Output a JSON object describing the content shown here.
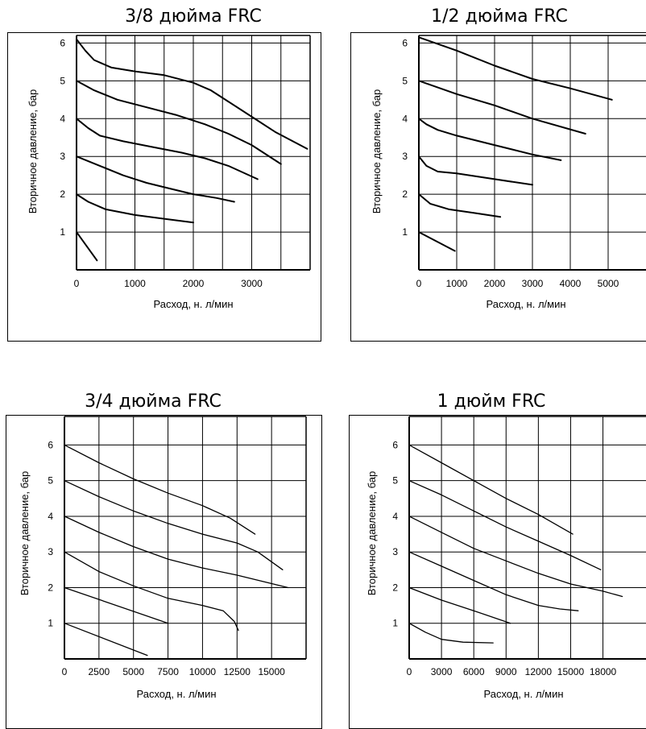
{
  "chart_data": [
    {
      "type": "line",
      "title": "3/8 дюйма FRC",
      "xlabel": "Расход, н. л/мин",
      "ylabel": "Вторичное давление, бар",
      "xlim": [
        0,
        4000
      ],
      "ylim": [
        0,
        6.2
      ],
      "xticks": [
        0,
        1000,
        2000,
        3000
      ],
      "xtick_labels": [
        "0",
        "1000",
        "2000",
        "3000"
      ],
      "yticks": [
        1,
        2,
        3,
        4,
        5,
        6
      ],
      "ytick_labels": [
        "1",
        "2",
        "3",
        "4",
        "5",
        "6"
      ],
      "vgrid": [
        0,
        500,
        1000,
        1500,
        2000,
        2500,
        3000,
        3500
      ],
      "hgrid": [
        1,
        2,
        3,
        4,
        5,
        6
      ],
      "series": [
        {
          "x": [
            0,
            150,
            300,
            600,
            1000,
            1500,
            2000,
            2300,
            2600,
            3000,
            3400,
            3950
          ],
          "y": [
            6.1,
            5.8,
            5.55,
            5.35,
            5.25,
            5.15,
            4.95,
            4.75,
            4.45,
            4.05,
            3.65,
            3.2
          ]
        },
        {
          "x": [
            0,
            300,
            700,
            1200,
            1700,
            2200,
            2600,
            3000,
            3500
          ],
          "y": [
            5.0,
            4.75,
            4.5,
            4.3,
            4.1,
            3.85,
            3.6,
            3.3,
            2.8
          ]
        },
        {
          "x": [
            0,
            200,
            400,
            800,
            1300,
            1800,
            2200,
            2600,
            3100
          ],
          "y": [
            4.0,
            3.75,
            3.55,
            3.4,
            3.25,
            3.1,
            2.95,
            2.75,
            2.4
          ]
        },
        {
          "x": [
            0,
            400,
            800,
            1200,
            1600,
            2000,
            2400,
            2700
          ],
          "y": [
            3.0,
            2.75,
            2.5,
            2.3,
            2.15,
            2.0,
            1.9,
            1.8
          ]
        },
        {
          "x": [
            0,
            200,
            500,
            1000,
            1500,
            2000
          ],
          "y": [
            2.0,
            1.8,
            1.6,
            1.45,
            1.35,
            1.25
          ]
        },
        {
          "x": [
            0,
            350
          ],
          "y": [
            1.0,
            0.25
          ]
        }
      ]
    },
    {
      "type": "line",
      "title": "1/2 дюйма FRC",
      "xlabel": "Расход, н. л/мин",
      "ylabel": "Вторичное давление, бар",
      "xlim": [
        0,
        6000
      ],
      "ylim": [
        0,
        6.2
      ],
      "xticks": [
        0,
        1000,
        2000,
        3000,
        4000,
        5000
      ],
      "xtick_labels": [
        "0",
        "1000",
        "2000",
        "3000",
        "4000",
        "5000"
      ],
      "yticks": [
        1,
        2,
        3,
        4,
        5,
        6
      ],
      "ytick_labels": [
        "1",
        "2",
        "3",
        "4",
        "5",
        "6"
      ],
      "vgrid": [
        1000,
        2000,
        3000,
        4000,
        5000
      ],
      "hgrid": [
        1,
        2,
        3,
        4,
        5,
        6
      ],
      "series": [
        {
          "x": [
            0,
            1000,
            2000,
            3000,
            4000,
            5100
          ],
          "y": [
            6.15,
            5.8,
            5.4,
            5.05,
            4.8,
            4.5
          ]
        },
        {
          "x": [
            0,
            1000,
            2000,
            3000,
            4400
          ],
          "y": [
            5.0,
            4.65,
            4.35,
            4.0,
            3.6
          ]
        },
        {
          "x": [
            0,
            200,
            500,
            1000,
            2000,
            3000,
            3750
          ],
          "y": [
            4.0,
            3.85,
            3.7,
            3.55,
            3.3,
            3.05,
            2.9
          ]
        },
        {
          "x": [
            0,
            200,
            500,
            1000,
            2000,
            3000
          ],
          "y": [
            3.0,
            2.75,
            2.6,
            2.55,
            2.4,
            2.25
          ]
        },
        {
          "x": [
            0,
            300,
            800,
            1500,
            2150
          ],
          "y": [
            2.0,
            1.75,
            1.6,
            1.5,
            1.4
          ]
        },
        {
          "x": [
            0,
            950
          ],
          "y": [
            1.0,
            0.5
          ]
        }
      ]
    },
    {
      "type": "line",
      "title": "3/4 дюйма FRC",
      "xlabel": "Расход, н. л/мин",
      "ylabel": "Вторичное давление, бар",
      "xlim": [
        0,
        17500
      ],
      "ylim": [
        0,
        6.8
      ],
      "xticks": [
        0,
        2500,
        5000,
        7500,
        10000,
        12500,
        15000
      ],
      "xtick_labels": [
        "0",
        "2500",
        "5000",
        "7500",
        "10000",
        "12500",
        "15000"
      ],
      "yticks": [
        1,
        2,
        3,
        4,
        5,
        6
      ],
      "ytick_labels": [
        "1",
        "2",
        "3",
        "4",
        "5",
        "6"
      ],
      "vgrid": [
        2500,
        5000,
        7500,
        10000,
        12500,
        15000
      ],
      "hgrid": [
        1,
        2,
        3,
        4,
        5,
        6
      ],
      "series": [
        {
          "x": [
            0,
            2500,
            5000,
            7500,
            10000,
            12000,
            13800
          ],
          "y": [
            6.0,
            5.5,
            5.05,
            4.65,
            4.3,
            3.95,
            3.5
          ]
        },
        {
          "x": [
            0,
            2500,
            5000,
            7500,
            10000,
            12500,
            14000,
            15800
          ],
          "y": [
            5.0,
            4.55,
            4.15,
            3.8,
            3.5,
            3.25,
            3.0,
            2.5
          ]
        },
        {
          "x": [
            0,
            2500,
            5000,
            7500,
            10000,
            12500,
            16200
          ],
          "y": [
            4.0,
            3.55,
            3.15,
            2.8,
            2.55,
            2.35,
            2.0
          ]
        },
        {
          "x": [
            0,
            2500,
            5000,
            7500,
            10000,
            11500,
            12300,
            12600
          ],
          "y": [
            3.0,
            2.45,
            2.05,
            1.7,
            1.5,
            1.35,
            1.05,
            0.8
          ]
        },
        {
          "x": [
            0,
            7500
          ],
          "y": [
            2.0,
            1.0
          ]
        },
        {
          "x": [
            0,
            6000
          ],
          "y": [
            1.0,
            0.1
          ]
        }
      ]
    },
    {
      "type": "line",
      "title": "1 дюйм FRC",
      "xlabel": "Расход, н. л/мин",
      "ylabel": "Вторичное давление, бар",
      "xlim": [
        0,
        22000
      ],
      "ylim": [
        0,
        6.8
      ],
      "xticks": [
        0,
        3000,
        6000,
        9000,
        12000,
        15000,
        18000
      ],
      "xtick_labels": [
        "0",
        "3000",
        "6000",
        "9000",
        "12000",
        "15000",
        "18000"
      ],
      "yticks": [
        1,
        2,
        3,
        4,
        5,
        6
      ],
      "ytick_labels": [
        "1",
        "2",
        "3",
        "4",
        "5",
        "6"
      ],
      "vgrid": [
        3000,
        6000,
        9000,
        12000,
        15000,
        18000
      ],
      "hgrid": [
        1,
        2,
        3,
        4,
        5,
        6
      ],
      "series": [
        {
          "x": [
            0,
            3000,
            6000,
            9000,
            12000,
            15200
          ],
          "y": [
            6.0,
            5.5,
            5.0,
            4.5,
            4.05,
            3.5
          ]
        },
        {
          "x": [
            0,
            3000,
            6000,
            9000,
            12000,
            15000,
            17800
          ],
          "y": [
            5.0,
            4.6,
            4.15,
            3.7,
            3.3,
            2.9,
            2.5
          ]
        },
        {
          "x": [
            0,
            3000,
            6000,
            9000,
            12000,
            15000,
            18000,
            19800
          ],
          "y": [
            4.0,
            3.55,
            3.1,
            2.75,
            2.4,
            2.1,
            1.9,
            1.75
          ]
        },
        {
          "x": [
            0,
            3000,
            6000,
            9000,
            12000,
            14000,
            15700
          ],
          "y": [
            3.0,
            2.6,
            2.2,
            1.8,
            1.5,
            1.4,
            1.35
          ]
        },
        {
          "x": [
            0,
            3000,
            6000,
            9400
          ],
          "y": [
            2.0,
            1.65,
            1.35,
            1.0
          ]
        },
        {
          "x": [
            0,
            1500,
            3000,
            5000,
            7800
          ],
          "y": [
            1.0,
            0.75,
            0.55,
            0.47,
            0.45
          ]
        }
      ]
    }
  ]
}
